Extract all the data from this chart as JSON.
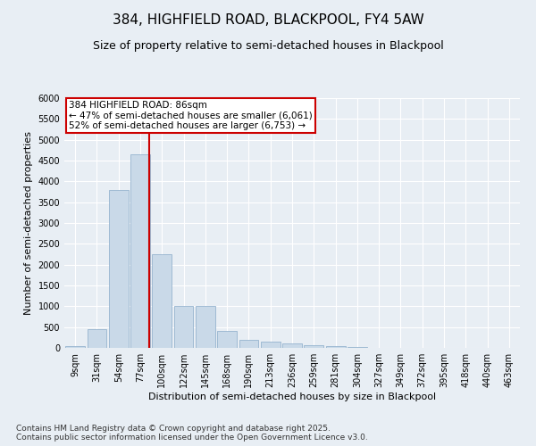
{
  "title1": "384, HIGHFIELD ROAD, BLACKPOOL, FY4 5AW",
  "title2": "Size of property relative to semi-detached houses in Blackpool",
  "xlabel": "Distribution of semi-detached houses by size in Blackpool",
  "ylabel": "Number of semi-detached properties",
  "categories": [
    "9sqm",
    "31sqm",
    "54sqm",
    "77sqm",
    "100sqm",
    "122sqm",
    "145sqm",
    "168sqm",
    "190sqm",
    "213sqm",
    "236sqm",
    "259sqm",
    "281sqm",
    "304sqm",
    "327sqm",
    "349sqm",
    "372sqm",
    "395sqm",
    "418sqm",
    "440sqm",
    "463sqm"
  ],
  "values": [
    50,
    450,
    3800,
    4650,
    2250,
    1000,
    1000,
    400,
    200,
    150,
    100,
    75,
    50,
    20,
    10,
    5,
    3,
    2,
    1,
    1,
    0
  ],
  "bar_color": "#c9d9e8",
  "bar_edgecolor": "#88aac8",
  "vline_color": "#cc0000",
  "annotation_text": "384 HIGHFIELD ROAD: 86sqm\n← 47% of semi-detached houses are smaller (6,061)\n52% of semi-detached houses are larger (6,753) →",
  "annotation_box_color": "#cc0000",
  "ylim": [
    0,
    6000
  ],
  "yticks": [
    0,
    500,
    1000,
    1500,
    2000,
    2500,
    3000,
    3500,
    4000,
    4500,
    5000,
    5500,
    6000
  ],
  "footer_text": "Contains HM Land Registry data © Crown copyright and database right 2025.\nContains public sector information licensed under the Open Government Licence v3.0.",
  "bg_color": "#e8eef4",
  "plot_bg_color": "#e8eef4",
  "grid_color": "#ffffff",
  "title1_fontsize": 11,
  "title2_fontsize": 9,
  "label_fontsize": 8,
  "tick_fontsize": 7,
  "footer_fontsize": 6.5,
  "ann_fontsize": 7.5
}
